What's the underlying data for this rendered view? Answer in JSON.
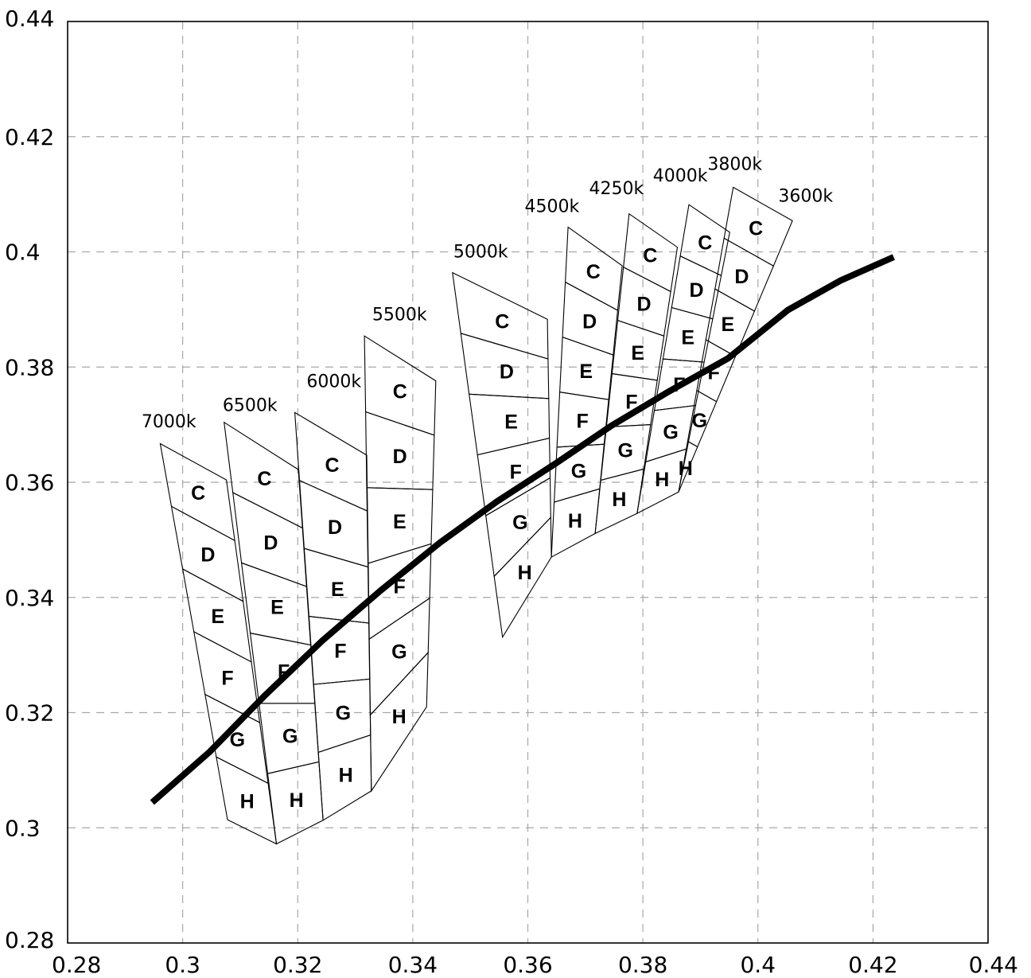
{
  "chart_data": {
    "type": "scatter",
    "title": "",
    "xlabel": "",
    "ylabel": "",
    "xlim": [
      0.28,
      0.44
    ],
    "ylim": [
      0.28,
      0.44
    ],
    "grid": true,
    "x_ticks": [
      "0.28",
      "0.3",
      "0.32",
      "0.34",
      "0.36",
      "0.38",
      "0.4",
      "0.42",
      "0.44"
    ],
    "y_ticks": [
      "0.28",
      "0.3",
      "0.32",
      "0.34",
      "0.36",
      "0.38",
      "0.4",
      "0.42",
      "0.44"
    ],
    "x_tick_values": [
      0.28,
      0.3,
      0.32,
      0.34,
      0.36,
      0.38,
      0.4,
      0.42,
      0.44
    ],
    "y_tick_values": [
      0.28,
      0.3,
      0.32,
      0.34,
      0.36,
      0.38,
      0.4,
      0.42,
      0.44
    ],
    "planckian_locus": {
      "x": [
        0.2947,
        0.3047,
        0.3144,
        0.3243,
        0.3344,
        0.3447,
        0.3547,
        0.3649,
        0.3745,
        0.3846,
        0.3948,
        0.4052,
        0.4143,
        0.4236
      ],
      "y": [
        0.3044,
        0.3132,
        0.3231,
        0.3325,
        0.3412,
        0.3495,
        0.3567,
        0.3633,
        0.3698,
        0.3758,
        0.3815,
        0.3899,
        0.395,
        0.3991
      ]
    },
    "cct_bins": [
      {
        "label": "7000k",
        "label_xy": [
          0.2976,
          0.3695
        ],
        "top": [
          [
            0.2961,
            0.3667
          ],
          [
            0.3076,
            0.3604
          ]
        ],
        "bottom": [
          [
            0.3078,
            0.3014
          ],
          [
            0.3163,
            0.2972
          ]
        ],
        "bins": [
          "C",
          "D",
          "E",
          "F",
          "G",
          "H"
        ]
      },
      {
        "label": "6500k",
        "label_xy": [
          0.3117,
          0.3724
        ],
        "top": [
          [
            0.3072,
            0.3704
          ],
          [
            0.3201,
            0.3622
          ]
        ],
        "bottom": [
          [
            0.3163,
            0.2972
          ],
          [
            0.3244,
            0.3013
          ]
        ],
        "bins": [
          "C",
          "D",
          "E",
          "F",
          "G",
          "H"
        ]
      },
      {
        "label": "6000k",
        "label_xy": [
          0.3263,
          0.3765
        ],
        "top": [
          [
            0.3195,
            0.3721
          ],
          [
            0.332,
            0.3647
          ]
        ],
        "bottom": [
          [
            0.3244,
            0.3013
          ],
          [
            0.3328,
            0.3064
          ]
        ],
        "bins": [
          "C",
          "D",
          "E",
          "F",
          "G",
          "H"
        ]
      },
      {
        "label": "5500k",
        "label_xy": [
          0.3377,
          0.3881
        ],
        "top": [
          [
            0.3316,
            0.3854
          ],
          [
            0.344,
            0.3776
          ]
        ],
        "bottom": [
          [
            0.3328,
            0.3064
          ],
          [
            0.3424,
            0.321
          ]
        ],
        "bins": [
          "C",
          "D",
          "E",
          "F",
          "G",
          "H"
        ]
      },
      {
        "label": "5000k",
        "label_xy": [
          0.3518,
          0.399
        ],
        "top": [
          [
            0.3469,
            0.3964
          ],
          [
            0.3634,
            0.3883
          ]
        ],
        "bottom": [
          [
            0.3556,
            0.3331
          ],
          [
            0.3641,
            0.347
          ]
        ],
        "bins": [
          "C",
          "D",
          "E",
          "F",
          "G",
          "H"
        ]
      },
      {
        "label": "4500k",
        "label_xy": [
          0.3642,
          0.4069
        ],
        "top": [
          [
            0.367,
            0.4043
          ],
          [
            0.3764,
            0.3976
          ]
        ],
        "bottom": [
          [
            0.3641,
            0.347
          ],
          [
            0.3717,
            0.3511
          ]
        ],
        "bins": [
          "C",
          "D",
          "E",
          "F",
          "G",
          "H"
        ]
      },
      {
        "label": "4250k",
        "label_xy": [
          0.3754,
          0.41
        ],
        "top": [
          [
            0.3776,
            0.4066
          ],
          [
            0.386,
            0.4008
          ]
        ],
        "bottom": [
          [
            0.3717,
            0.3511
          ],
          [
            0.379,
            0.3546
          ]
        ],
        "bins": [
          "C",
          "D",
          "E",
          "F",
          "G",
          "H"
        ]
      },
      {
        "label": "4000k",
        "label_xy": [
          0.3865,
          0.4122
        ],
        "top": [
          [
            0.388,
            0.4082
          ],
          [
            0.3951,
            0.4034
          ]
        ],
        "bottom": [
          [
            0.379,
            0.3546
          ],
          [
            0.3862,
            0.3583
          ]
        ],
        "bins": [
          "C",
          "D",
          "E",
          "F",
          "G",
          "H"
        ]
      },
      {
        "label": "3800k",
        "label_xy": [
          0.396,
          0.4142
        ],
        "top": [
          [
            0.3957,
            0.4112
          ],
          [
            0.406,
            0.4054
          ]
        ],
        "bottom": [
          [
            0.3862,
            0.3583
          ],
          [
            0.3862,
            0.3583
          ]
        ],
        "bins": [
          "C",
          "D",
          "E",
          "F",
          "G",
          "H"
        ]
      },
      {
        "label": "3600k",
        "label_xy": [
          0.4083,
          0.4087
        ],
        "top": [],
        "bottom": [],
        "bins": []
      }
    ]
  }
}
